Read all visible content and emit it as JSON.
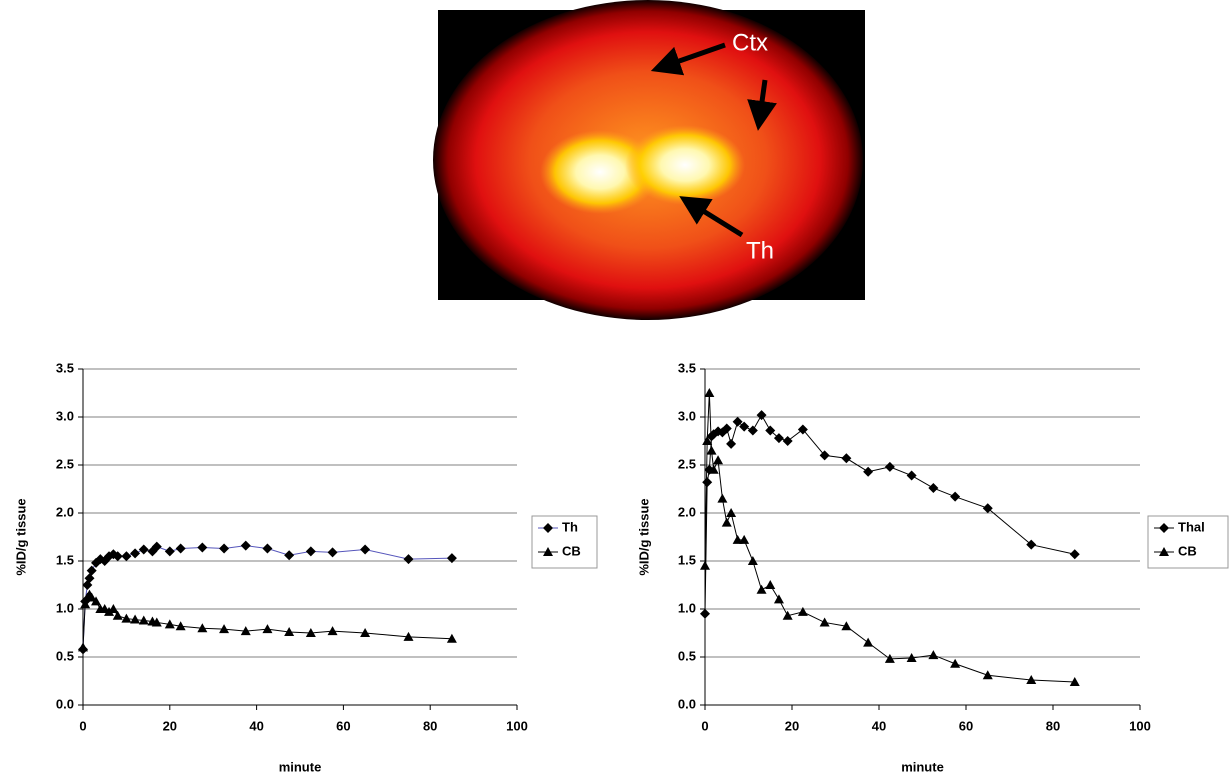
{
  "image": {
    "labels": [
      "Ctx",
      "Th"
    ]
  },
  "chart_data": [
    {
      "type": "line",
      "xlabel": "minute",
      "ylabel": "%ID/g tissue",
      "xlim": [
        0,
        100
      ],
      "xticks": [
        0,
        20,
        40,
        60,
        80,
        100
      ],
      "ylim": [
        0,
        3.5
      ],
      "yticks": [
        {
          "value": 0,
          "label": "0.0"
        },
        0.5,
        {
          "value": 1,
          "label": "1.0"
        },
        1.5,
        {
          "value": 2,
          "label": "2.0"
        },
        2.5,
        {
          "value": 3,
          "label": "3.0"
        },
        3.5
      ],
      "grid": true,
      "legend": "right",
      "x": [
        0,
        0.5,
        1,
        1.5,
        2,
        3,
        4,
        5,
        6,
        7,
        8,
        10,
        12,
        14,
        16,
        17,
        20,
        22.5,
        27.5,
        32.5,
        37.5,
        42.5,
        47.5,
        52.5,
        57.5,
        65,
        75,
        85
      ],
      "series": [
        {
          "name": "Th",
          "color": "#5555bb",
          "marker": "diamond",
          "values": [
            0.58,
            1.08,
            1.25,
            1.32,
            1.4,
            1.48,
            1.52,
            1.5,
            1.55,
            1.57,
            1.55,
            1.55,
            1.58,
            1.62,
            1.6,
            1.65,
            1.6,
            1.63,
            1.64,
            1.63,
            1.66,
            1.63,
            1.56,
            1.6,
            1.59,
            1.62,
            1.52,
            1.53
          ]
        },
        {
          "name": "CB",
          "color": "#000000",
          "marker": "triangle",
          "values": [
            0.6,
            1.05,
            1.12,
            1.15,
            1.12,
            1.08,
            1.0,
            1.0,
            0.97,
            1.0,
            0.93,
            0.9,
            0.89,
            0.88,
            0.87,
            0.86,
            0.84,
            0.82,
            0.8,
            0.79,
            0.77,
            0.79,
            0.76,
            0.75,
            0.77,
            0.75,
            0.71,
            0.69
          ]
        }
      ]
    },
    {
      "type": "line",
      "xlabel": "minute",
      "ylabel": "%ID/g tissue",
      "xlim": [
        0,
        100
      ],
      "xticks": [
        0,
        20,
        40,
        60,
        80,
        100
      ],
      "ylim": [
        0,
        3.5
      ],
      "yticks": [
        {
          "value": 0,
          "label": "0.0"
        },
        0.5,
        {
          "value": 1,
          "label": "1.0"
        },
        1.5,
        {
          "value": 2,
          "label": "2.0"
        },
        2.5,
        {
          "value": 3,
          "label": "3.0"
        },
        3.5
      ],
      "grid": true,
      "legend": "right",
      "x": [
        0,
        0.5,
        1,
        1.5,
        2,
        3,
        4,
        5,
        6,
        7.5,
        9,
        11,
        13,
        15,
        17,
        19,
        22.5,
        27.5,
        32.5,
        37.5,
        42.5,
        47.5,
        52.5,
        57.5,
        65,
        75,
        85
      ],
      "series": [
        {
          "name": "Thal",
          "color": "#000000",
          "marker": "diamond",
          "values": [
            0.95,
            2.32,
            2.45,
            2.8,
            2.82,
            2.85,
            2.84,
            2.88,
            2.72,
            2.95,
            2.9,
            2.86,
            3.02,
            2.86,
            2.78,
            2.75,
            2.87,
            2.6,
            2.57,
            2.43,
            2.48,
            2.39,
            2.26,
            2.17,
            2.05,
            1.67,
            1.57
          ]
        },
        {
          "name": "CB",
          "color": "#000000",
          "marker": "triangle",
          "values": [
            1.45,
            2.75,
            3.25,
            2.65,
            2.45,
            2.55,
            2.15,
            1.9,
            2.0,
            1.72,
            1.72,
            1.5,
            1.2,
            1.25,
            1.1,
            0.93,
            0.97,
            0.86,
            0.82,
            0.65,
            0.48,
            0.49,
            0.52,
            0.43,
            0.31,
            0.26,
            0.24
          ]
        }
      ]
    }
  ]
}
